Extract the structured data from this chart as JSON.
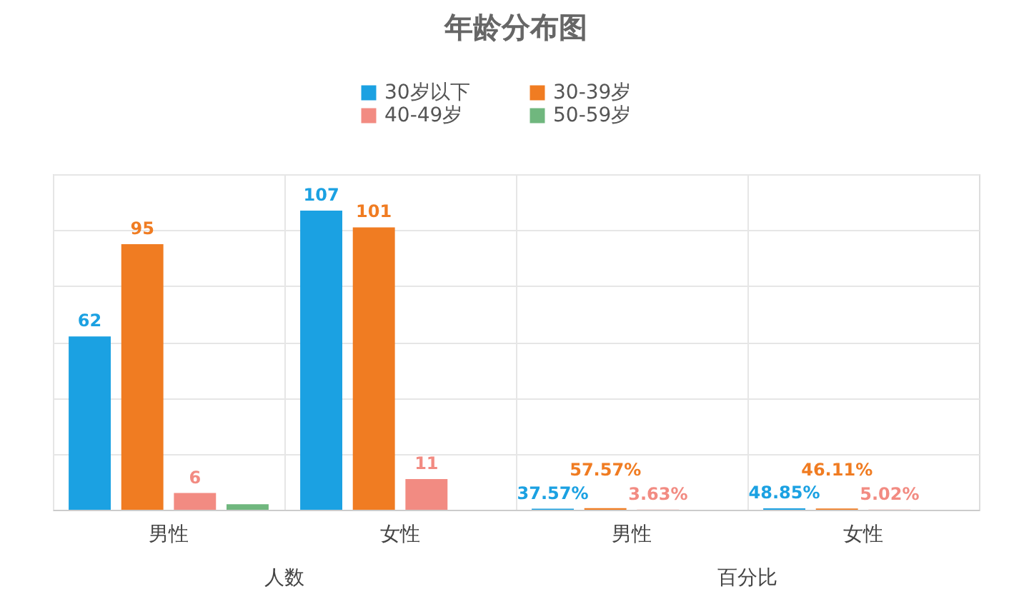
{
  "chart_data": {
    "type": "bar",
    "title": "年龄分布图",
    "categories": [
      "男性",
      "女性",
      "男性",
      "女性"
    ],
    "annotations": [
      "人数",
      "百分比"
    ],
    "series": [
      {
        "name": "30岁以下",
        "color": "#1ba1e2",
        "values": [
          62,
          107,
          0.3757,
          0.4885
        ],
        "value_labels": [
          "62",
          "107",
          "37.57%",
          "48.85%"
        ]
      },
      {
        "name": "30-39岁",
        "color": "#f07c22",
        "values": [
          95,
          101,
          0.5757,
          0.4611
        ],
        "value_labels": [
          "95",
          "101",
          "57.57%",
          "46.11%"
        ]
      },
      {
        "name": "40-49岁",
        "color": "#f28b82",
        "values": [
          6,
          11,
          0.0363,
          0.0502
        ],
        "value_labels": [
          "6",
          "11",
          "3.63%",
          "5.02%"
        ]
      },
      {
        "name": "50-59岁",
        "color": "#70b77e",
        "values": [
          2,
          0,
          null,
          0
        ],
        "value_labels": [
          null,
          null,
          null,
          null
        ]
      }
    ],
    "ylim": [
      0,
      120
    ],
    "yticks": [
      0,
      20,
      40,
      60,
      80,
      100,
      120
    ],
    "grid": true,
    "legend": "top",
    "tick_labels": "x"
  }
}
